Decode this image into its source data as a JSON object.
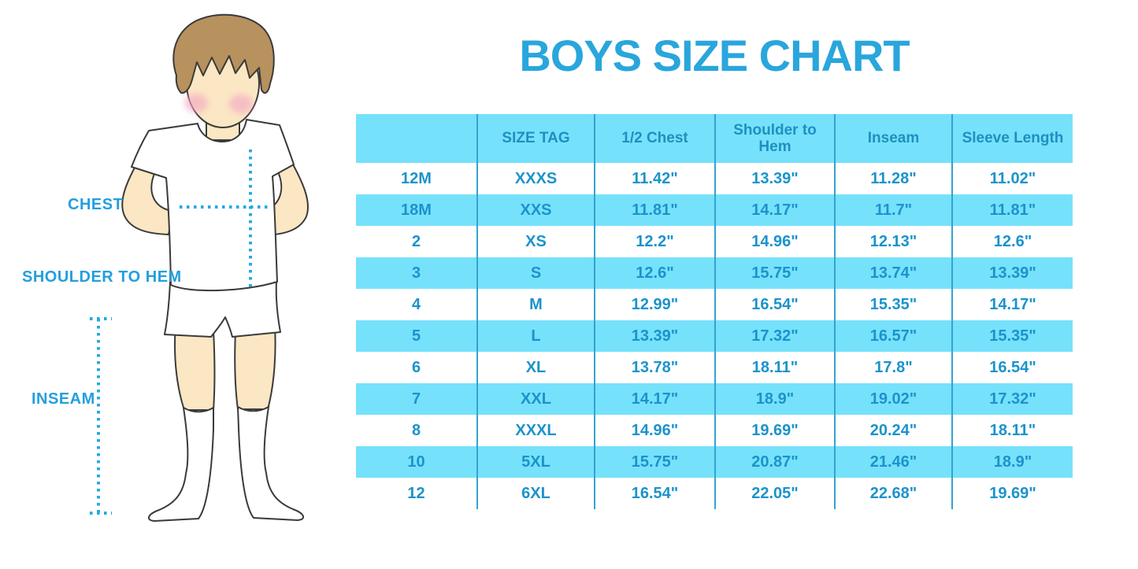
{
  "title": "BOYS SIZE CHART",
  "figure": {
    "labels": {
      "chest": "CHEST",
      "shoulder_to_hem": "SHOULDER TO HEM",
      "inseam": "INSEAM"
    }
  },
  "colors": {
    "title_blue": "#29a6dc",
    "label_blue": "#239fdd",
    "table_text": "#1b93cb",
    "row_cyan": "#76e1fb",
    "divider_blue": "#35a3cf",
    "dotted_line_blue": "#29a8e0",
    "skin": "#fbe7c3",
    "hair": "#b7915e"
  },
  "chart_data": {
    "type": "table",
    "title": "BOYS SIZE CHART",
    "columns": [
      "",
      "SIZE TAG",
      "1/2 Chest",
      "Shoulder to Hem",
      "Inseam",
      "Sleeve Length"
    ],
    "rows": [
      [
        "12M",
        "XXXS",
        "11.42\"",
        "13.39\"",
        "11.28\"",
        "11.02\""
      ],
      [
        "18M",
        "XXS",
        "11.81\"",
        "14.17\"",
        "11.7\"",
        "11.81\""
      ],
      [
        "2",
        "XS",
        "12.2\"",
        "14.96\"",
        "12.13\"",
        "12.6\""
      ],
      [
        "3",
        "S",
        "12.6\"",
        "15.75\"",
        "13.74\"",
        "13.39\""
      ],
      [
        "4",
        "M",
        "12.99\"",
        "16.54\"",
        "15.35\"",
        "14.17\""
      ],
      [
        "5",
        "L",
        "13.39\"",
        "17.32\"",
        "16.57\"",
        "15.35\""
      ],
      [
        "6",
        "XL",
        "13.78\"",
        "18.11\"",
        "17.8\"",
        "16.54\""
      ],
      [
        "7",
        "XXL",
        "14.17\"",
        "18.9\"",
        "19.02\"",
        "17.32\""
      ],
      [
        "8",
        "XXXL",
        "14.96\"",
        "19.69\"",
        "20.24\"",
        "18.11\""
      ],
      [
        "10",
        "5XL",
        "15.75\"",
        "20.87\"",
        "21.46\"",
        "18.9\""
      ],
      [
        "12",
        "6XL",
        "16.54\"",
        "22.05\"",
        "22.68\"",
        "19.69\""
      ]
    ],
    "layout": {
      "row_striping": "header and alternate rows cyan, others white",
      "column_dividers": true,
      "horizontal_gridlines": false
    }
  }
}
